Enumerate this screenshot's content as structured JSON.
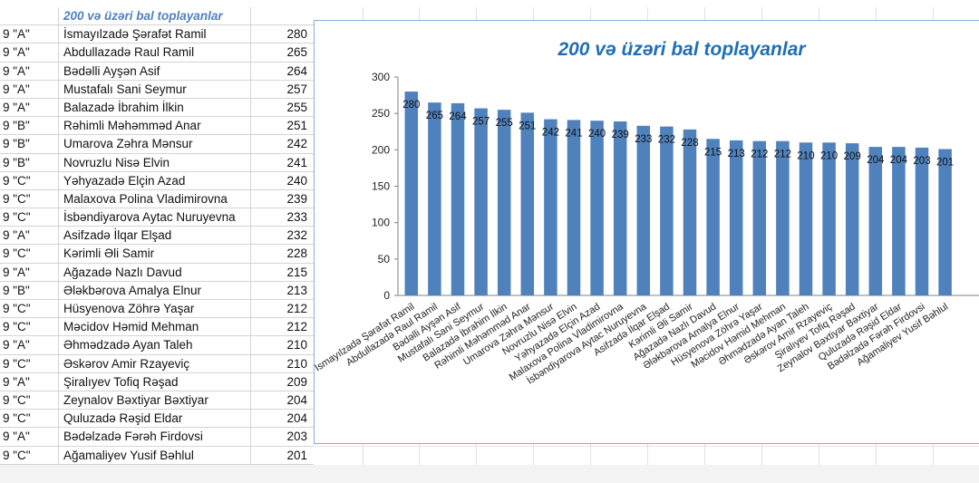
{
  "sheet": {
    "header": "200 və üzəri bal toplayanlar",
    "rows": [
      {
        "cls": "9 \"A\"",
        "name": "İsmayılzadə Şərafət Ramil",
        "score": "280"
      },
      {
        "cls": "9 \"A\"",
        "name": "Abdullazadə Raul Ramil",
        "score": "265"
      },
      {
        "cls": "9 \"A\"",
        "name": "Bədəlli Ayşən Asif",
        "score": "264"
      },
      {
        "cls": "9 \"A\"",
        "name": "Mustafalı Sani Seymur",
        "score": "257"
      },
      {
        "cls": "9 \"A\"",
        "name": "Balazadə İbrahim İlkin",
        "score": "255"
      },
      {
        "cls": "9 \"B\"",
        "name": "Rəhimli Məhəmməd Anar",
        "score": "251"
      },
      {
        "cls": "9 \"B\"",
        "name": "Umarova Zəhra Mənsur",
        "score": "242"
      },
      {
        "cls": "9 \"B\"",
        "name": "Novruzlu Nisə Elvin",
        "score": "241"
      },
      {
        "cls": "9 \"C\"",
        "name": "Yəhyazadə Elçin Azad",
        "score": "240"
      },
      {
        "cls": "9 \"C\"",
        "name": "Malaxova Polina Vladimirovna",
        "score": "239"
      },
      {
        "cls": "9 \"C\"",
        "name": "İsbəndiyarova Aytac Nuruyevna",
        "score": "233"
      },
      {
        "cls": "9 \"A\"",
        "name": "Asifzadə İlqar Elşad",
        "score": "232"
      },
      {
        "cls": "9 \"C\"",
        "name": "Kərimli Əli Samir",
        "score": "228"
      },
      {
        "cls": "9 \"A\"",
        "name": "Ağazadə Nazlı Davud",
        "score": "215"
      },
      {
        "cls": "9 \"B\"",
        "name": "Ələkbərova Amalya Elnur",
        "score": "213"
      },
      {
        "cls": "9 \"C\"",
        "name": "Hüsyenova Zöhrə Yaşar",
        "score": "212"
      },
      {
        "cls": "9 \"C\"",
        "name": "Məcidov Həmid Mehman",
        "score": "212"
      },
      {
        "cls": "9 \"A\"",
        "name": "Əhmədzadə Ayan Taleh",
        "score": "210"
      },
      {
        "cls": "9 \"C\"",
        "name": "Əskərov Amir Rzayeviç",
        "score": "210"
      },
      {
        "cls": "9 \"A\"",
        "name": "Şiralıyev Tofiq Rəşad",
        "score": "209"
      },
      {
        "cls": "9 \"C\"",
        "name": "Zeynalov Bəxtiyar Bəxtiyar",
        "score": "204"
      },
      {
        "cls": "9 \"C\"",
        "name": "Quluzadə Rəşid Eldar",
        "score": "204"
      },
      {
        "cls": "9 \"A\"",
        "name": "Bədəlzadə Fərəh Firdovsi",
        "score": "203"
      },
      {
        "cls": "9 \"C\"",
        "name": "Ağamaliyev Yusif Bəhlul",
        "score": "201"
      }
    ]
  },
  "chart_data": {
    "type": "bar",
    "title": "200 və üzəri bal toplayanlar",
    "categories": [
      "İsmayılzadə Şərafət Ramil",
      "Abdullazadə Raul Ramil",
      "Bədəlli Ayşən Asif",
      "Mustafalı Sani Seymur",
      "Balazadə İbrahim İlkin",
      "Rəhimli Məhəmməd Anar",
      "Umarova Zəhra Mənsur",
      "Novruzlu Nisə Elvin",
      "Yəhyazadə Elçin Azad",
      "Malaxova Polina Vladimirovna",
      "İsbəndiyarova Aytac Nuruyevna",
      "Asifzadə İlqar Elşad",
      "Kərimli Əli Samir",
      "Ağazadə Nazlı Davud",
      "Ələkbərova Amalya Elnur",
      "Hüsyenova Zöhrə Yaşar",
      "Məcidov Həmid Mehman",
      "Əhmədzadə Ayan Taleh",
      "Əskərov Amir Rzayeviç",
      "Şiralıyev Tofiq Rəşad",
      "Zeynalov Bəxtiyar Bəxtiyar",
      "Quluzadə Rəşid Eldar",
      "Bədəlzadə Fərəh Firdovsi",
      "Ağamaliyev Yusif Bəhlul"
    ],
    "values": [
      280,
      265,
      264,
      257,
      255,
      251,
      242,
      241,
      240,
      239,
      233,
      232,
      228,
      215,
      213,
      212,
      212,
      210,
      210,
      209,
      204,
      204,
      203,
      201
    ],
    "ylim": [
      0,
      300
    ],
    "yticks": [
      0,
      50,
      100,
      150,
      200,
      250,
      300
    ],
    "xlabel": "",
    "ylabel": "",
    "legend": "none",
    "grid": false,
    "bar_color": "#4f81bd",
    "title_color": "#1f6fb5"
  }
}
